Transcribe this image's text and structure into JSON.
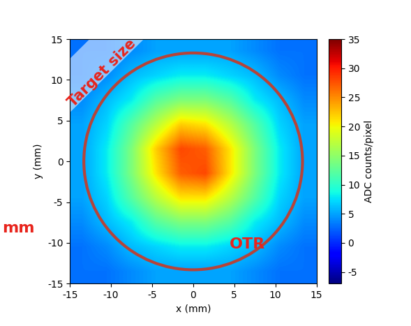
{
  "chart_data": {
    "type": "heatmap",
    "x_label": "x (mm)",
    "y_label": "y (mm)",
    "xlim": [
      -15,
      15
    ],
    "ylim": [
      -15,
      15
    ],
    "xticks": [
      -15,
      -10,
      -5,
      0,
      5,
      10,
      15
    ],
    "yticks": [
      -15,
      -10,
      -5,
      0,
      5,
      10,
      15
    ],
    "cells": [
      [
        3,
        3,
        4,
        5,
        5,
        5,
        5,
        4,
        3,
        3
      ],
      [
        3,
        4,
        6,
        7,
        8,
        8,
        7,
        6,
        4,
        3
      ],
      [
        4,
        6,
        8,
        12,
        14,
        14,
        12,
        8,
        6,
        4
      ],
      [
        5,
        7,
        12,
        17,
        21,
        21,
        17,
        12,
        7,
        5
      ],
      [
        5,
        8,
        14,
        21,
        27,
        28,
        21,
        14,
        8,
        5
      ],
      [
        5,
        8,
        14,
        22,
        28,
        27,
        21,
        14,
        8,
        5
      ],
      [
        5,
        7,
        12,
        17,
        22,
        21,
        17,
        12,
        7,
        5
      ],
      [
        4,
        6,
        8,
        12,
        14,
        14,
        12,
        8,
        6,
        4
      ],
      [
        3,
        4,
        6,
        7,
        8,
        8,
        7,
        6,
        4,
        3
      ],
      [
        3,
        3,
        4,
        5,
        5,
        5,
        5,
        4,
        3,
        3
      ]
    ],
    "colorbar": {
      "label": "ADC counts/pixel",
      "range": [
        -7,
        35
      ],
      "ticks": [
        -5,
        0,
        5,
        10,
        15,
        20,
        25,
        30,
        35
      ]
    },
    "target_circle": {
      "center": [
        0,
        0
      ],
      "radius": 13.3,
      "color": "#b5443a"
    },
    "annotations": [
      "Target size",
      "OTR",
      "mm"
    ],
    "color": "#e8241c"
  }
}
